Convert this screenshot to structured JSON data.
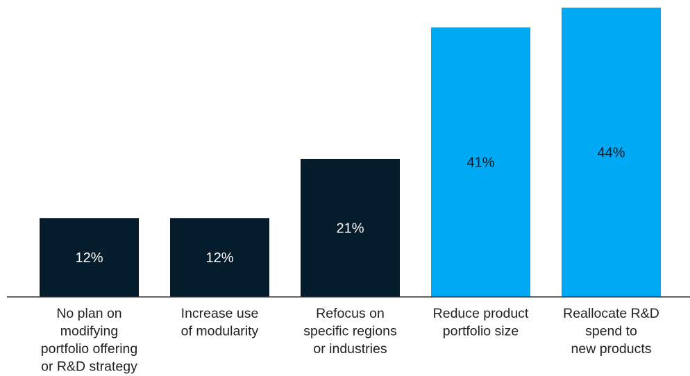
{
  "chart_data": {
    "type": "bar",
    "title": "",
    "xlabel": "",
    "ylabel": "",
    "ylim": [
      0,
      44
    ],
    "grid": false,
    "legend": "none",
    "categories": [
      "No plan on modifying portfolio offering or R&D strategy",
      "Increase use of modularity",
      "Refocus on specific regions or industries",
      "Reduce product portfolio size",
      "Reallocate R&D spend to new products"
    ],
    "category_lines": [
      [
        "No plan on",
        "modifying",
        "portfolio offering",
        "or R&D strategy"
      ],
      [
        "Increase use",
        "of modularity"
      ],
      [
        "Refocus on",
        "specific regions",
        "or industries"
      ],
      [
        "Reduce product",
        "portfolio size"
      ],
      [
        "Reallocate R&D",
        "spend to",
        "new products"
      ]
    ],
    "values": [
      12,
      12,
      21,
      41,
      44
    ],
    "data_labels": [
      "12%",
      "12%",
      "21%",
      "41%",
      "44%"
    ],
    "bar_colors": [
      "#051c2c",
      "#051c2c",
      "#051c2c",
      "#00a9f4",
      "#00a9f4"
    ],
    "label_colors": [
      "#ffffff",
      "#ffffff",
      "#ffffff",
      "#051c2c",
      "#051c2c"
    ],
    "axis_color": "#333333"
  }
}
